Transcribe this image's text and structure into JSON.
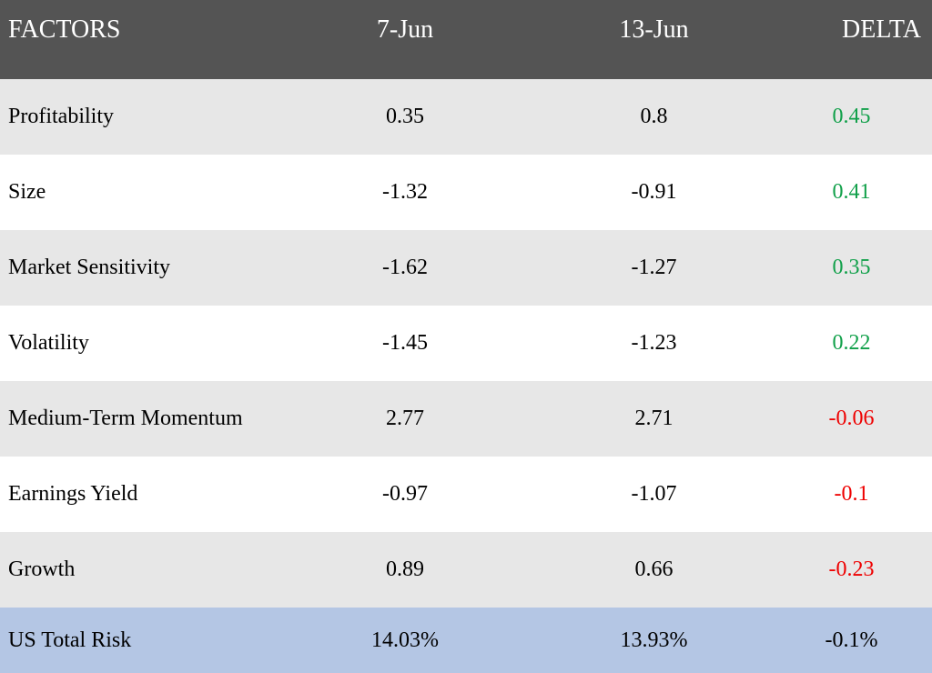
{
  "chart_data": {
    "type": "table",
    "columns": [
      "FACTORS",
      "7-Jun",
      "13-Jun",
      "DELTA"
    ],
    "rows": [
      {
        "factor": "Profitability",
        "jun7": "0.35",
        "jun13": "0.8",
        "delta": "0.45",
        "sign": "pos"
      },
      {
        "factor": "Size",
        "jun7": "-1.32",
        "jun13": "-0.91",
        "delta": "0.41",
        "sign": "pos"
      },
      {
        "factor": "Market Sensitivity",
        "jun7": "-1.62",
        "jun13": "-1.27",
        "delta": "0.35",
        "sign": "pos"
      },
      {
        "factor": "Volatility",
        "jun7": "-1.45",
        "jun13": "-1.23",
        "delta": "0.22",
        "sign": "pos"
      },
      {
        "factor": "Medium-Term Momentum",
        "jun7": "2.77",
        "jun13": "2.71",
        "delta": "-0.06",
        "sign": "neg"
      },
      {
        "factor": "Earnings Yield",
        "jun7": "-0.97",
        "jun13": "-1.07",
        "delta": "-0.1",
        "sign": "neg"
      },
      {
        "factor": "Growth",
        "jun7": "0.89",
        "jun13": "0.66",
        "delta": "-0.23",
        "sign": "neg"
      }
    ],
    "total": {
      "factor": "US Total Risk",
      "jun7": "14.03%",
      "jun13": "13.93%",
      "delta": "-0.1%"
    },
    "colors": {
      "header_bg": "#545454",
      "header_text": "#ffffff",
      "row_shaded": "#e7e7e7",
      "row_plain": "#ffffff",
      "total_bg": "#b4c6e4",
      "positive": "#11a04a",
      "negative": "#ee0000"
    }
  }
}
